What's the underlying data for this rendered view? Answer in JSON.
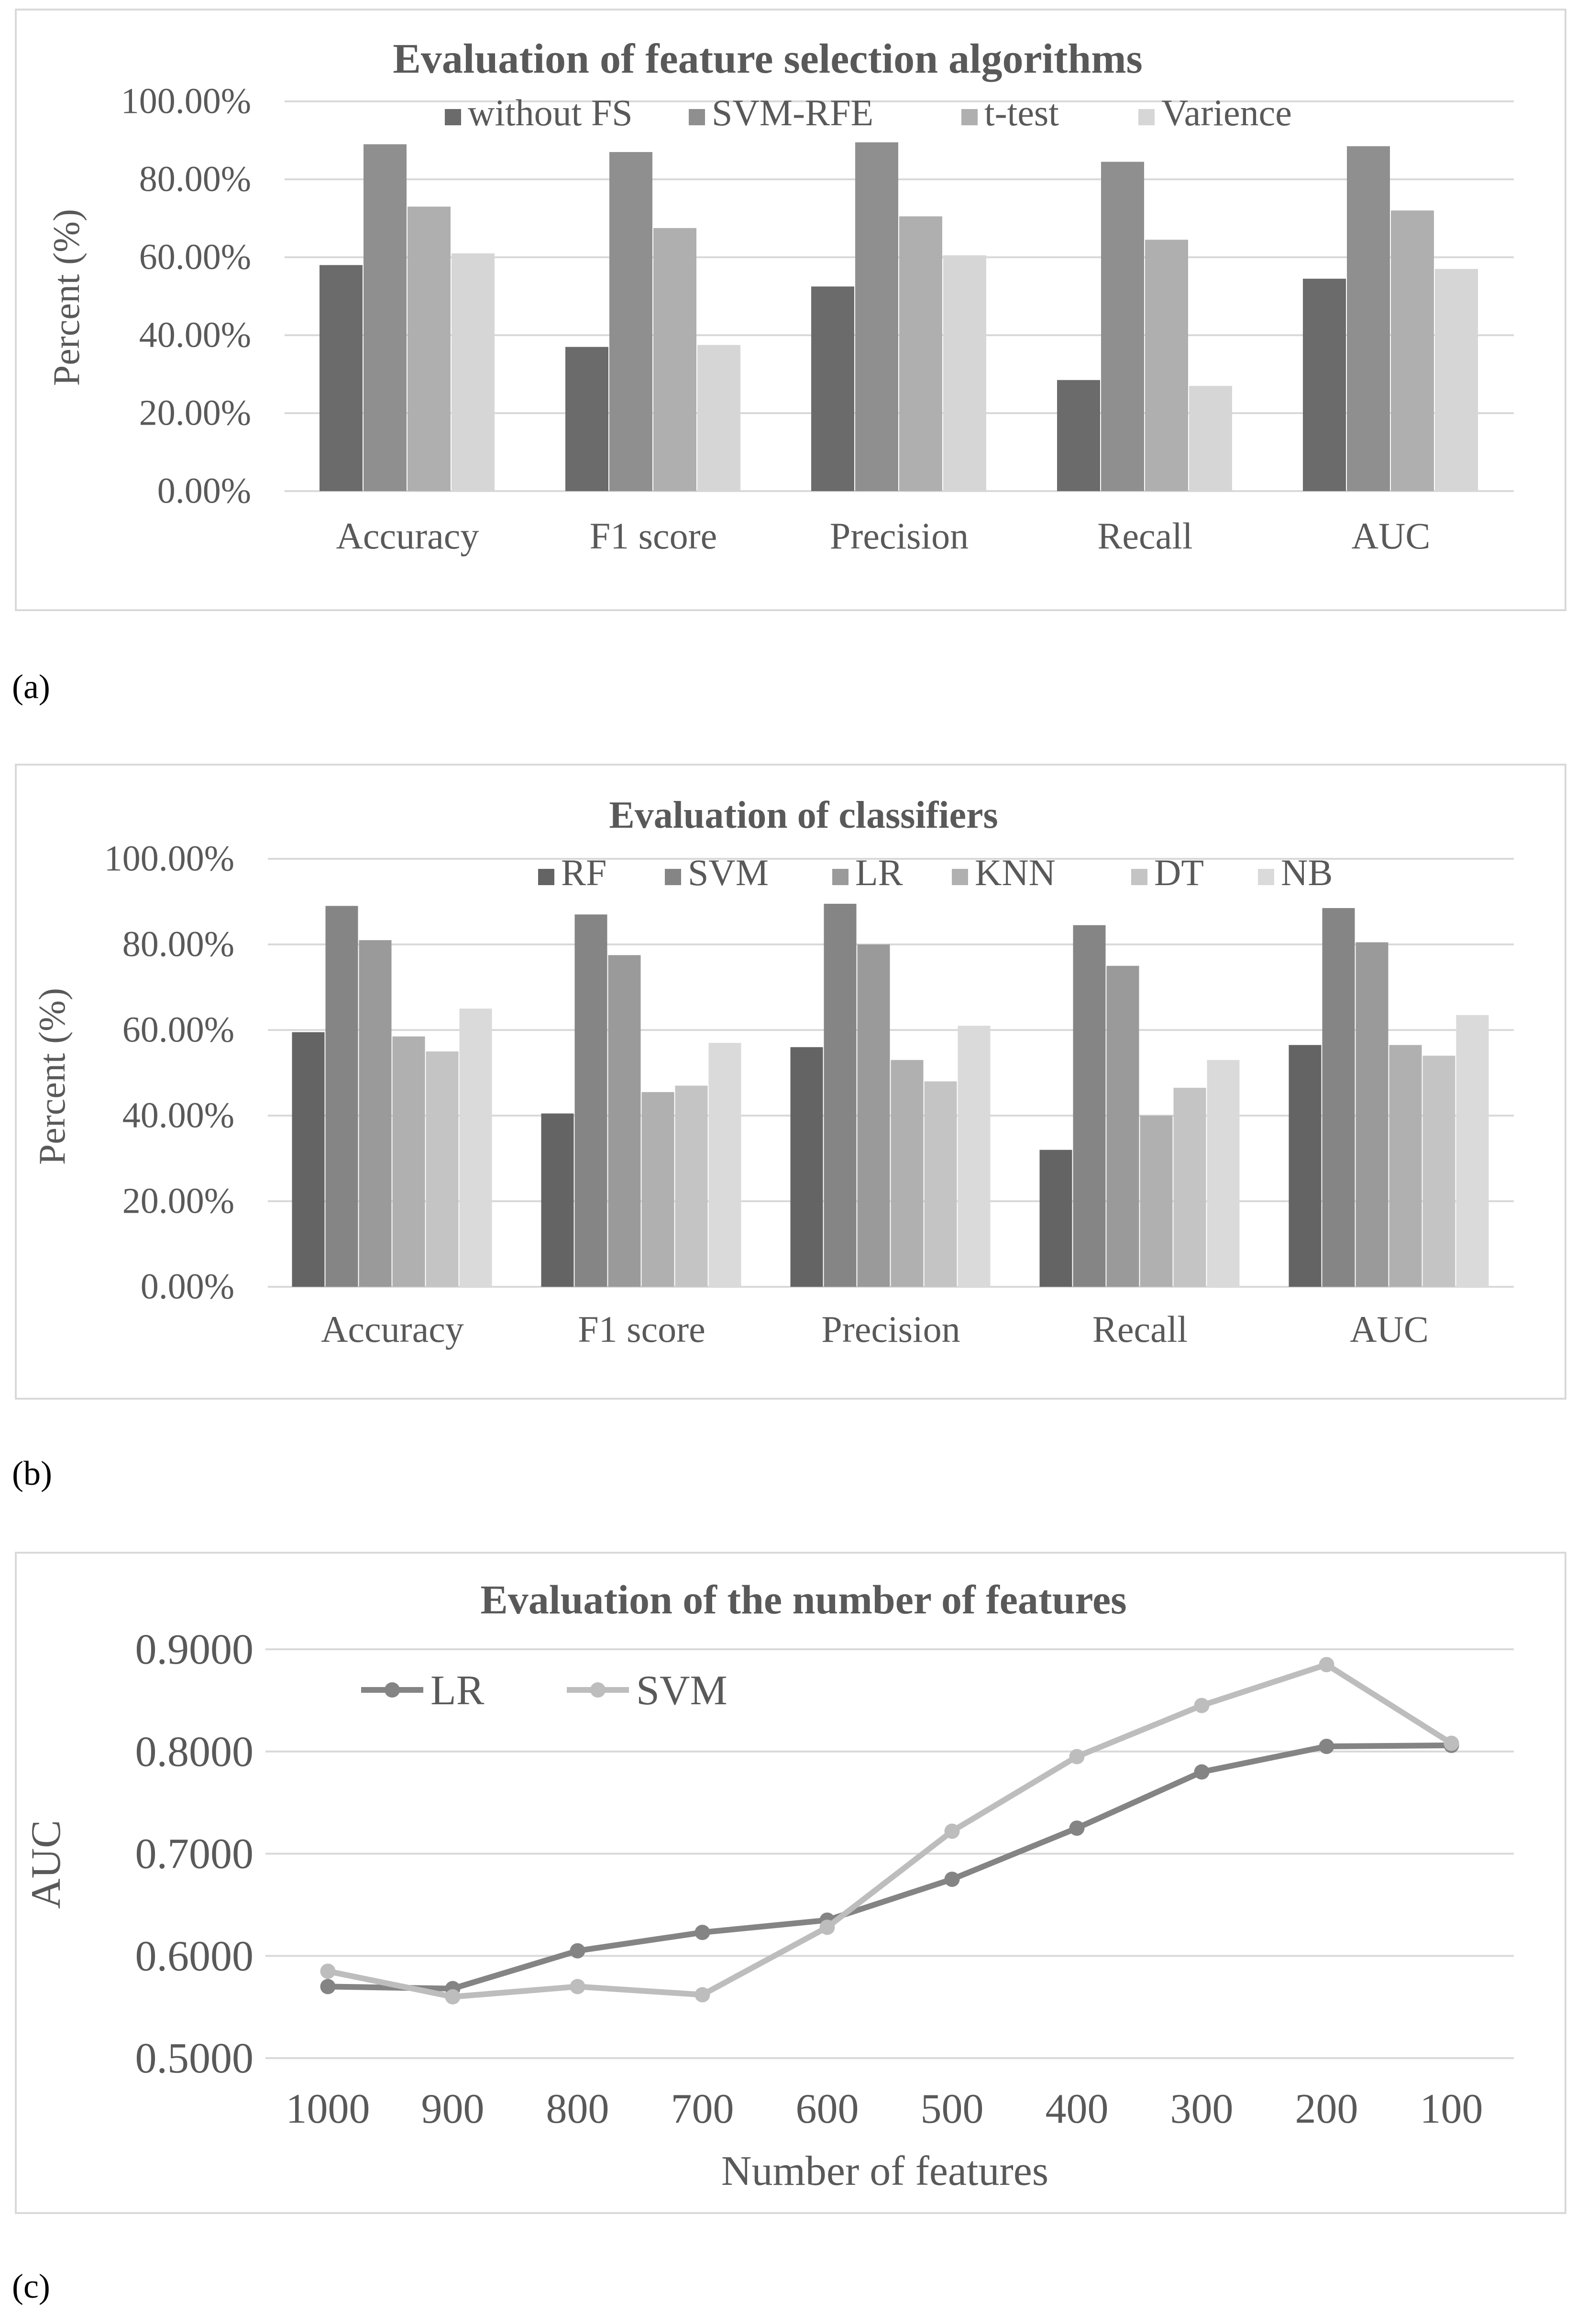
{
  "panels": [
    {
      "label": "(a)"
    },
    {
      "label": "(b)"
    },
    {
      "label": "(c)"
    }
  ],
  "chart_data": [
    {
      "type": "bar",
      "title": "Evaluation of feature selection algorithms",
      "xlabel": "",
      "ylabel": "Percent (%)",
      "ylim": [
        0,
        100
      ],
      "yticks": [
        "0.00%",
        "20.00%",
        "40.00%",
        "60.00%",
        "80.00%",
        "100.00%"
      ],
      "categories": [
        "Accuracy",
        "F1 score",
        "Precision",
        "Recall",
        "AUC"
      ],
      "series": [
        {
          "name": "without FS",
          "color": "#6b6b6b",
          "values": [
            58,
            37,
            52.5,
            28.5,
            54.5
          ]
        },
        {
          "name": "SVM-RFE",
          "color": "#8f8f8f",
          "values": [
            89,
            87,
            89.5,
            84.5,
            88.5
          ]
        },
        {
          "name": "t-test",
          "color": "#afafaf",
          "values": [
            73,
            67.5,
            70.5,
            64.5,
            72
          ]
        },
        {
          "name": "Varience",
          "color": "#d6d6d6",
          "values": [
            61,
            37.5,
            60.5,
            27,
            57
          ]
        }
      ],
      "legend": "top",
      "grid": true
    },
    {
      "type": "bar",
      "title": "Evaluation of classifiers",
      "xlabel": "",
      "ylabel": "Percent (%)",
      "ylim": [
        0,
        100
      ],
      "yticks": [
        "0.00%",
        "20.00%",
        "40.00%",
        "60.00%",
        "80.00%",
        "100.00%"
      ],
      "categories": [
        "Accuracy",
        "F1 score",
        "Precision",
        "Recall",
        "AUC"
      ],
      "series": [
        {
          "name": "RF",
          "color": "#646464",
          "values": [
            59.5,
            40.5,
            56,
            32,
            56.5
          ]
        },
        {
          "name": "SVM",
          "color": "#858585",
          "values": [
            89,
            87,
            89.5,
            84.5,
            88.5
          ]
        },
        {
          "name": "LR",
          "color": "#9a9a9a",
          "values": [
            81,
            77.5,
            80,
            75,
            80.5
          ]
        },
        {
          "name": "KNN",
          "color": "#b0b0b0",
          "values": [
            58.5,
            45.5,
            53,
            40,
            56.5
          ]
        },
        {
          "name": "DT",
          "color": "#c4c4c4",
          "values": [
            55,
            47,
            48,
            46.5,
            54
          ]
        },
        {
          "name": "NB",
          "color": "#dadada",
          "values": [
            65,
            57,
            61,
            53,
            63.5
          ]
        }
      ],
      "legend": "top",
      "grid": true
    },
    {
      "type": "line",
      "title": "Evaluation of the number of features",
      "xlabel": "Number of features",
      "ylabel": "AUC",
      "ylim": [
        0.5,
        0.9
      ],
      "yticks": [
        "0.5000",
        "0.6000",
        "0.7000",
        "0.8000",
        "0.9000"
      ],
      "x": [
        "1000",
        "900",
        "800",
        "700",
        "600",
        "500",
        "400",
        "300",
        "200",
        "100"
      ],
      "series": [
        {
          "name": "LR",
          "color": "#848484",
          "values": [
            0.57,
            0.568,
            0.605,
            0.623,
            0.635,
            0.675,
            0.725,
            0.78,
            0.805,
            0.806
          ]
        },
        {
          "name": "SVM",
          "color": "#bdbdbd",
          "values": [
            0.585,
            0.56,
            0.57,
            0.562,
            0.628,
            0.722,
            0.795,
            0.845,
            0.885,
            0.808
          ]
        }
      ],
      "legend": "top-left",
      "grid": true
    }
  ]
}
